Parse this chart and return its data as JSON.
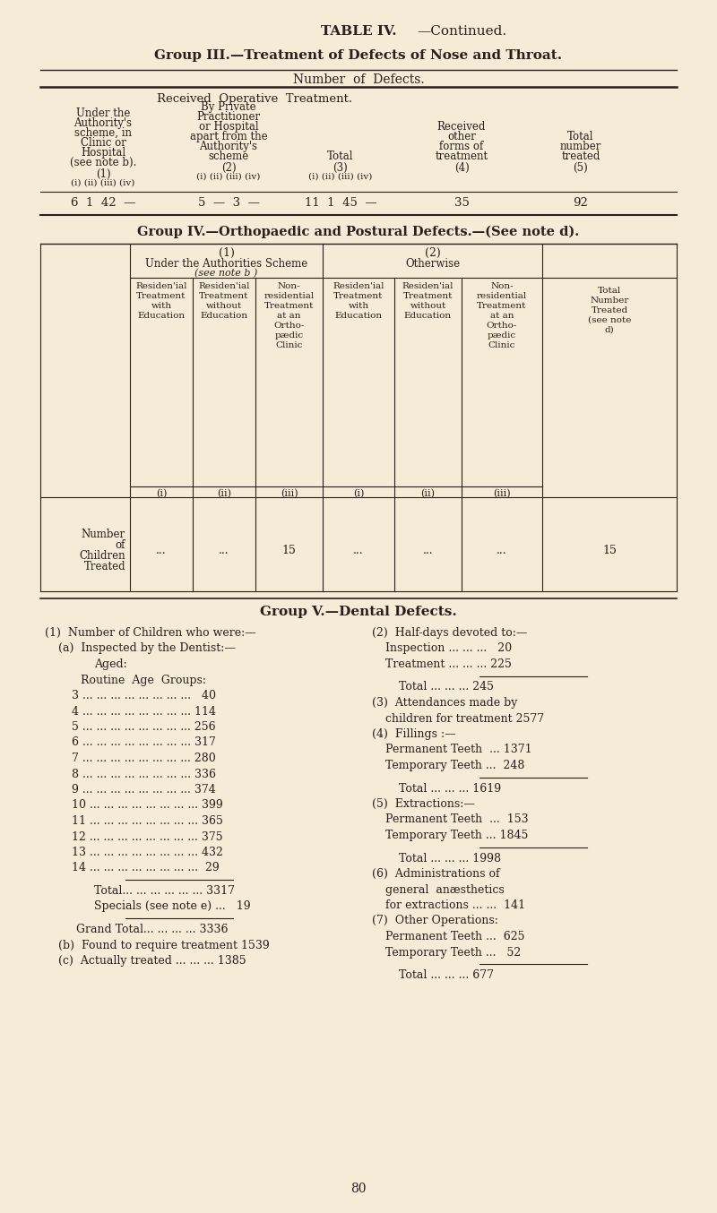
{
  "bg_color": "#f5ecd7",
  "text_color": "#2a1f1a",
  "page_title": "TABLE IV.—Continued.",
  "group3_title": "Group III.—Treatment of Defects of Nose and Throat.",
  "group3_header1": "Number of Defects.",
  "group3_subheader": "Received Operative Treatment.",
  "group4_title": "Group IV.—Orthopaedic and Postural Defects.—(See note d).",
  "group5_title": "Group V.—Dental Defects.",
  "page_number": "80"
}
